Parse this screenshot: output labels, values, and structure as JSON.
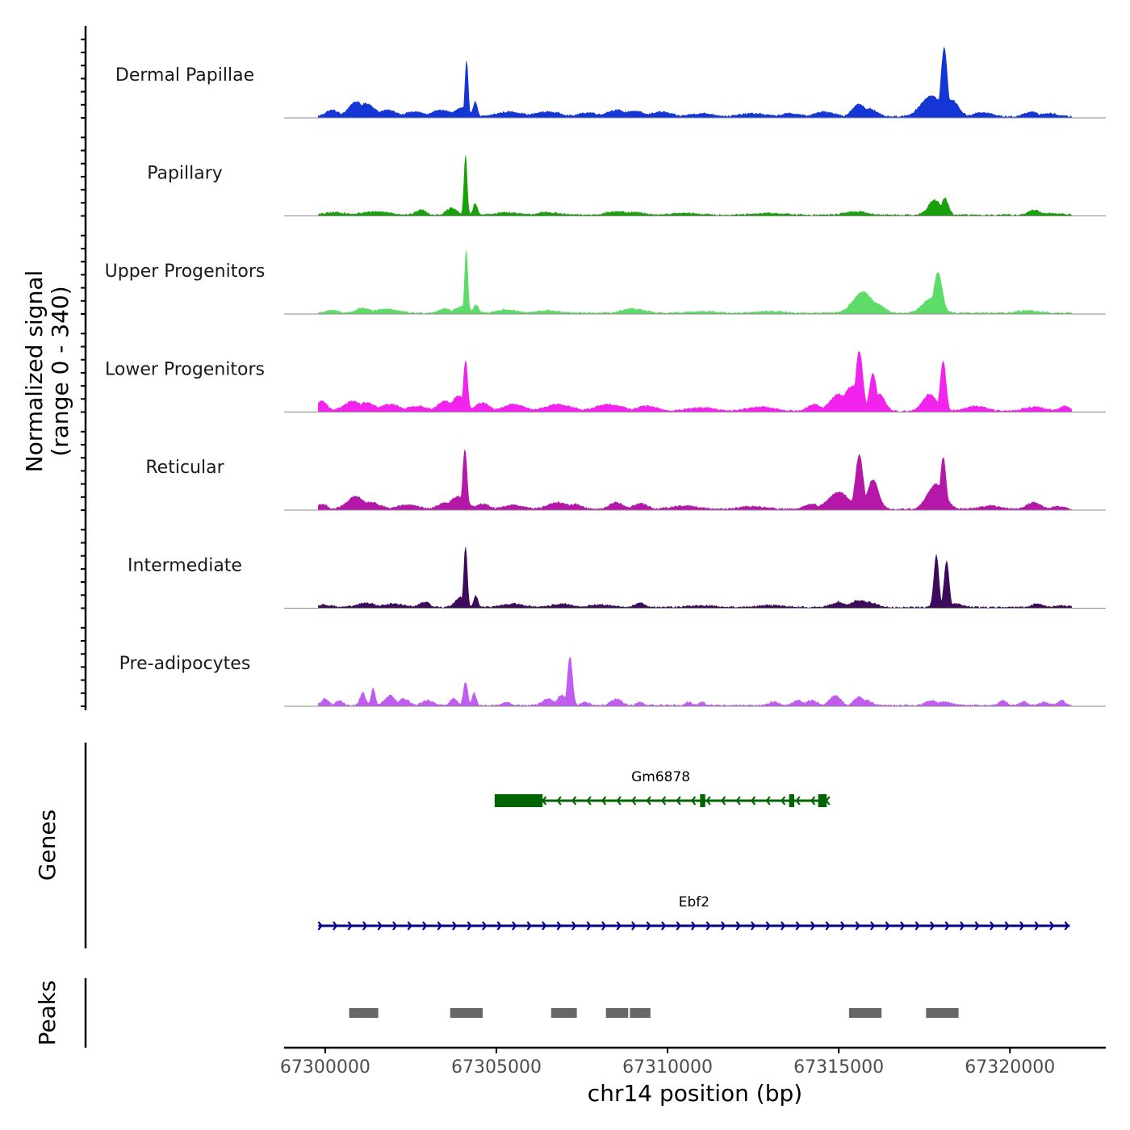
{
  "chart_data": {
    "type": "area",
    "chromosome": "chr14",
    "xlabel": "chr14 position (bp)",
    "ylabel_line1": "Normalized signal",
    "ylabel_line2": "(range 0 - 340)",
    "y_range": [
      0,
      340
    ],
    "xlim": [
      67298800,
      67322800
    ],
    "x_ticks": [
      67300000,
      67305000,
      67310000,
      67315000,
      67320000
    ],
    "x_tick_labels": [
      "67300000",
      "67305000",
      "67310000",
      "67315000",
      "67320000"
    ],
    "region": [
      67299800,
      67321800
    ],
    "tracks": [
      {
        "name": "Dermal Papillae",
        "color": "#1436d4",
        "peaks": [
          {
            "pos": 67300200,
            "h": 8,
            "w": 200
          },
          {
            "pos": 67300900,
            "h": 18,
            "w": 220
          },
          {
            "pos": 67301200,
            "h": 16,
            "w": 250
          },
          {
            "pos": 67301800,
            "h": 8,
            "w": 300
          },
          {
            "pos": 67302600,
            "h": 6,
            "w": 300
          },
          {
            "pos": 67303400,
            "h": 8,
            "w": 300
          },
          {
            "pos": 67304130,
            "h": 68,
            "w": 45
          },
          {
            "pos": 67304000,
            "h": 10,
            "w": 250
          },
          {
            "pos": 67304380,
            "h": 18,
            "w": 60
          },
          {
            "pos": 67305400,
            "h": 6,
            "w": 400
          },
          {
            "pos": 67306500,
            "h": 6,
            "w": 400
          },
          {
            "pos": 67307700,
            "h": 5,
            "w": 300
          },
          {
            "pos": 67308500,
            "h": 8,
            "w": 300
          },
          {
            "pos": 67309000,
            "h": 7,
            "w": 300
          },
          {
            "pos": 67309800,
            "h": 6,
            "w": 300
          },
          {
            "pos": 67311000,
            "h": 4,
            "w": 400
          },
          {
            "pos": 67312500,
            "h": 4,
            "w": 400
          },
          {
            "pos": 67313600,
            "h": 4,
            "w": 300
          },
          {
            "pos": 67314600,
            "h": 6,
            "w": 300
          },
          {
            "pos": 67315600,
            "h": 15,
            "w": 200
          },
          {
            "pos": 67315900,
            "h": 10,
            "w": 200
          },
          {
            "pos": 67317700,
            "h": 25,
            "w": 300
          },
          {
            "pos": 67318080,
            "h": 82,
            "w": 90
          },
          {
            "pos": 67318300,
            "h": 20,
            "w": 200
          },
          {
            "pos": 67319200,
            "h": 5,
            "w": 300
          },
          {
            "pos": 67320600,
            "h": 6,
            "w": 200
          },
          {
            "pos": 67321100,
            "h": 4,
            "w": 300
          }
        ]
      },
      {
        "name": "Papillary",
        "color": "#19a10b",
        "peaks": [
          {
            "pos": 67300300,
            "h": 3,
            "w": 300
          },
          {
            "pos": 67301500,
            "h": 4,
            "w": 400
          },
          {
            "pos": 67302800,
            "h": 6,
            "w": 150
          },
          {
            "pos": 67303700,
            "h": 8,
            "w": 150
          },
          {
            "pos": 67304100,
            "h": 70,
            "w": 45
          },
          {
            "pos": 67304380,
            "h": 14,
            "w": 60
          },
          {
            "pos": 67305300,
            "h": 3,
            "w": 300
          },
          {
            "pos": 67306500,
            "h": 3,
            "w": 300
          },
          {
            "pos": 67308500,
            "h": 4,
            "w": 300
          },
          {
            "pos": 67309000,
            "h": 3,
            "w": 300
          },
          {
            "pos": 67310500,
            "h": 2,
            "w": 400
          },
          {
            "pos": 67313000,
            "h": 2,
            "w": 400
          },
          {
            "pos": 67315500,
            "h": 4,
            "w": 300
          },
          {
            "pos": 67317800,
            "h": 18,
            "w": 180
          },
          {
            "pos": 67318100,
            "h": 20,
            "w": 100
          },
          {
            "pos": 67320700,
            "h": 6,
            "w": 150
          },
          {
            "pos": 67321200,
            "h": 2,
            "w": 300
          }
        ]
      },
      {
        "name": "Upper Progenitors",
        "color": "#5ddc6a",
        "peaks": [
          {
            "pos": 67300200,
            "h": 3,
            "w": 200
          },
          {
            "pos": 67301100,
            "h": 6,
            "w": 200
          },
          {
            "pos": 67301800,
            "h": 5,
            "w": 300
          },
          {
            "pos": 67303500,
            "h": 5,
            "w": 200
          },
          {
            "pos": 67304120,
            "h": 74,
            "w": 45
          },
          {
            "pos": 67304000,
            "h": 8,
            "w": 200
          },
          {
            "pos": 67304400,
            "h": 10,
            "w": 80
          },
          {
            "pos": 67305300,
            "h": 4,
            "w": 300
          },
          {
            "pos": 67306500,
            "h": 3,
            "w": 300
          },
          {
            "pos": 67309000,
            "h": 5,
            "w": 300
          },
          {
            "pos": 67311000,
            "h": 2,
            "w": 400
          },
          {
            "pos": 67313000,
            "h": 2,
            "w": 400
          },
          {
            "pos": 67315700,
            "h": 25,
            "w": 280
          },
          {
            "pos": 67316100,
            "h": 12,
            "w": 200
          },
          {
            "pos": 67317900,
            "h": 48,
            "w": 120
          },
          {
            "pos": 67317700,
            "h": 18,
            "w": 250
          },
          {
            "pos": 67320500,
            "h": 3,
            "w": 300
          }
        ]
      },
      {
        "name": "Lower Progenitors",
        "color": "#f223ed",
        "peaks": [
          {
            "pos": 67299900,
            "h": 12,
            "w": 150
          },
          {
            "pos": 67300800,
            "h": 12,
            "w": 250
          },
          {
            "pos": 67301200,
            "h": 10,
            "w": 250
          },
          {
            "pos": 67301900,
            "h": 8,
            "w": 300
          },
          {
            "pos": 67302700,
            "h": 6,
            "w": 300
          },
          {
            "pos": 67303500,
            "h": 12,
            "w": 200
          },
          {
            "pos": 67304100,
            "h": 60,
            "w": 60
          },
          {
            "pos": 67303900,
            "h": 18,
            "w": 200
          },
          {
            "pos": 67304600,
            "h": 10,
            "w": 200
          },
          {
            "pos": 67305500,
            "h": 8,
            "w": 300
          },
          {
            "pos": 67306800,
            "h": 8,
            "w": 400
          },
          {
            "pos": 67308300,
            "h": 8,
            "w": 400
          },
          {
            "pos": 67309400,
            "h": 6,
            "w": 300
          },
          {
            "pos": 67311000,
            "h": 4,
            "w": 400
          },
          {
            "pos": 67312700,
            "h": 5,
            "w": 400
          },
          {
            "pos": 67314300,
            "h": 8,
            "w": 200
          },
          {
            "pos": 67315000,
            "h": 20,
            "w": 250
          },
          {
            "pos": 67315600,
            "h": 72,
            "w": 100
          },
          {
            "pos": 67315400,
            "h": 30,
            "w": 250
          },
          {
            "pos": 67316000,
            "h": 45,
            "w": 100
          },
          {
            "pos": 67316200,
            "h": 20,
            "w": 150
          },
          {
            "pos": 67317650,
            "h": 20,
            "w": 200
          },
          {
            "pos": 67318050,
            "h": 60,
            "w": 80
          },
          {
            "pos": 67319000,
            "h": 6,
            "w": 300
          },
          {
            "pos": 67320700,
            "h": 5,
            "w": 300
          },
          {
            "pos": 67321600,
            "h": 6,
            "w": 150
          }
        ]
      },
      {
        "name": "Reticular",
        "color": "#b518a9",
        "peaks": [
          {
            "pos": 67299900,
            "h": 6,
            "w": 150
          },
          {
            "pos": 67300900,
            "h": 15,
            "w": 250
          },
          {
            "pos": 67301300,
            "h": 8,
            "w": 300
          },
          {
            "pos": 67302400,
            "h": 5,
            "w": 300
          },
          {
            "pos": 67303500,
            "h": 8,
            "w": 200
          },
          {
            "pos": 67304080,
            "h": 72,
            "w": 60
          },
          {
            "pos": 67303900,
            "h": 15,
            "w": 250
          },
          {
            "pos": 67304600,
            "h": 6,
            "w": 200
          },
          {
            "pos": 67305500,
            "h": 5,
            "w": 300
          },
          {
            "pos": 67306800,
            "h": 8,
            "w": 300
          },
          {
            "pos": 67307300,
            "h": 6,
            "w": 200
          },
          {
            "pos": 67308500,
            "h": 8,
            "w": 200
          },
          {
            "pos": 67309200,
            "h": 7,
            "w": 200
          },
          {
            "pos": 67310500,
            "h": 4,
            "w": 400
          },
          {
            "pos": 67312500,
            "h": 3,
            "w": 400
          },
          {
            "pos": 67314200,
            "h": 6,
            "w": 200
          },
          {
            "pos": 67315000,
            "h": 20,
            "w": 300
          },
          {
            "pos": 67315600,
            "h": 65,
            "w": 110
          },
          {
            "pos": 67316000,
            "h": 35,
            "w": 160
          },
          {
            "pos": 67317850,
            "h": 30,
            "w": 250
          },
          {
            "pos": 67318050,
            "h": 62,
            "w": 80
          },
          {
            "pos": 67319400,
            "h": 4,
            "w": 300
          },
          {
            "pos": 67320700,
            "h": 8,
            "w": 200
          },
          {
            "pos": 67321400,
            "h": 3,
            "w": 200
          }
        ]
      },
      {
        "name": "Intermediate",
        "color": "#3e0a5b",
        "peaks": [
          {
            "pos": 67300000,
            "h": 3,
            "w": 200
          },
          {
            "pos": 67301200,
            "h": 5,
            "w": 250
          },
          {
            "pos": 67302000,
            "h": 4,
            "w": 300
          },
          {
            "pos": 67302900,
            "h": 6,
            "w": 150
          },
          {
            "pos": 67304100,
            "h": 72,
            "w": 50
          },
          {
            "pos": 67303950,
            "h": 12,
            "w": 150
          },
          {
            "pos": 67304400,
            "h": 14,
            "w": 60
          },
          {
            "pos": 67305500,
            "h": 4,
            "w": 300
          },
          {
            "pos": 67306900,
            "h": 4,
            "w": 250
          },
          {
            "pos": 67308000,
            "h": 3,
            "w": 300
          },
          {
            "pos": 67309200,
            "h": 5,
            "w": 150
          },
          {
            "pos": 67311000,
            "h": 2,
            "w": 400
          },
          {
            "pos": 67313000,
            "h": 2,
            "w": 400
          },
          {
            "pos": 67315000,
            "h": 6,
            "w": 200
          },
          {
            "pos": 67315600,
            "h": 8,
            "w": 250
          },
          {
            "pos": 67315900,
            "h": 6,
            "w": 200
          },
          {
            "pos": 67317850,
            "h": 62,
            "w": 70
          },
          {
            "pos": 67318150,
            "h": 55,
            "w": 70
          },
          {
            "pos": 67318400,
            "h": 4,
            "w": 200
          },
          {
            "pos": 67320800,
            "h": 4,
            "w": 150
          },
          {
            "pos": 67321500,
            "h": 2,
            "w": 200
          }
        ]
      },
      {
        "name": "Pre-adipocytes",
        "color": "#c05cf0",
        "peaks": [
          {
            "pos": 67300000,
            "h": 8,
            "w": 100
          },
          {
            "pos": 67300400,
            "h": 6,
            "w": 100
          },
          {
            "pos": 67301100,
            "h": 15,
            "w": 80
          },
          {
            "pos": 67301400,
            "h": 20,
            "w": 60
          },
          {
            "pos": 67301900,
            "h": 12,
            "w": 150
          },
          {
            "pos": 67302300,
            "h": 8,
            "w": 150
          },
          {
            "pos": 67303000,
            "h": 6,
            "w": 150
          },
          {
            "pos": 67303750,
            "h": 8,
            "w": 100
          },
          {
            "pos": 67304100,
            "h": 28,
            "w": 60
          },
          {
            "pos": 67304350,
            "h": 15,
            "w": 60
          },
          {
            "pos": 67305300,
            "h": 4,
            "w": 100
          },
          {
            "pos": 67306500,
            "h": 8,
            "w": 150
          },
          {
            "pos": 67306900,
            "h": 12,
            "w": 120
          },
          {
            "pos": 67307150,
            "h": 58,
            "w": 70
          },
          {
            "pos": 67307600,
            "h": 4,
            "w": 100
          },
          {
            "pos": 67308500,
            "h": 8,
            "w": 150
          },
          {
            "pos": 67309200,
            "h": 4,
            "w": 100
          },
          {
            "pos": 67310600,
            "h": 4,
            "w": 80
          },
          {
            "pos": 67311000,
            "h": 4,
            "w": 80
          },
          {
            "pos": 67313100,
            "h": 4,
            "w": 150
          },
          {
            "pos": 67313800,
            "h": 6,
            "w": 150
          },
          {
            "pos": 67314200,
            "h": 6,
            "w": 150
          },
          {
            "pos": 67314900,
            "h": 12,
            "w": 150
          },
          {
            "pos": 67315600,
            "h": 10,
            "w": 150
          },
          {
            "pos": 67315800,
            "h": 6,
            "w": 150
          },
          {
            "pos": 67317700,
            "h": 6,
            "w": 150
          },
          {
            "pos": 67318100,
            "h": 4,
            "w": 200
          },
          {
            "pos": 67319800,
            "h": 6,
            "w": 100
          },
          {
            "pos": 67320400,
            "h": 4,
            "w": 100
          },
          {
            "pos": 67321000,
            "h": 4,
            "w": 150
          },
          {
            "pos": 67321500,
            "h": 6,
            "w": 100
          }
        ]
      }
    ],
    "genes_panel_label": "Genes",
    "genes": [
      {
        "name": "Gm6878",
        "start": 67304950,
        "end": 67314650,
        "strand": "-",
        "color": "#006400",
        "exons": [
          [
            67304950,
            67306350
          ],
          [
            67310950,
            67311100
          ],
          [
            67313550,
            67313700
          ],
          [
            67314400,
            67314650
          ]
        ]
      },
      {
        "name": "Ebf2",
        "start": 67299800,
        "end": 67321750,
        "strand": "+",
        "color": "#00008b",
        "exons": []
      }
    ],
    "peaks_panel_label": "Peaks",
    "peak_regions": [
      [
        67300700,
        67301550
      ],
      [
        67303650,
        67304600
      ],
      [
        67306600,
        67307350
      ],
      [
        67308200,
        67308850
      ],
      [
        67308900,
        67309500
      ],
      [
        67315300,
        67316250
      ],
      [
        67317550,
        67318500
      ]
    ],
    "peak_color": "#666666"
  }
}
